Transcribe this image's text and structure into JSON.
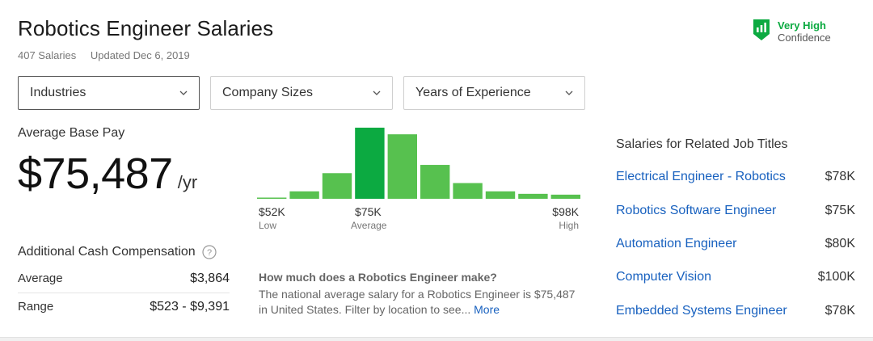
{
  "header": {
    "title": "Robotics Engineer Salaries",
    "salary_count": "407 Salaries",
    "updated": "Updated Dec 6, 2019"
  },
  "confidence": {
    "level": "Very High",
    "label": "Confidence",
    "icon": "bar-chart-shield-icon",
    "color": "#0caa41"
  },
  "filters": [
    {
      "label": "Industries"
    },
    {
      "label": "Company Sizes"
    },
    {
      "label": "Years of Experience"
    }
  ],
  "base_pay": {
    "label": "Average Base Pay",
    "amount": "$75,487",
    "unit": "/yr"
  },
  "histogram": {
    "min_label": "$52K",
    "min_sub": "Low",
    "avg_label": "$75K",
    "avg_sub": "Average",
    "max_label": "$98K",
    "max_sub": "High",
    "bar_color": "#57c14f",
    "highlight_color": "#0caa41",
    "highlight_index": 3,
    "values": [
      1,
      9,
      31,
      86,
      78,
      41,
      19,
      9,
      6,
      5
    ]
  },
  "additional_cash": {
    "title": "Additional Cash Compensation",
    "rows": [
      {
        "label": "Average",
        "value": "$3,864"
      },
      {
        "label": "Range",
        "value": "$523 - $9,391"
      }
    ]
  },
  "faq": {
    "question": "How much does a Robotics Engineer make?",
    "answer": "The national average salary for a Robotics Engineer is $75,487 in United States. Filter by location to see...",
    "more": "More"
  },
  "related": {
    "title": "Salaries for Related Job Titles",
    "items": [
      {
        "title": "Electrical Engineer - Robotics",
        "salary": "$78K"
      },
      {
        "title": "Robotics Software Engineer",
        "salary": "$75K"
      },
      {
        "title": "Automation Engineer",
        "salary": "$80K"
      },
      {
        "title": "Computer Vision",
        "salary": "$100K"
      },
      {
        "title": "Embedded Systems Engineer",
        "salary": "$78K"
      }
    ]
  }
}
